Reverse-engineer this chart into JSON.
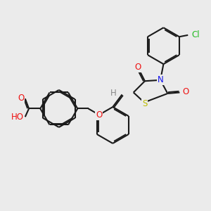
{
  "bg_color": "#ebebeb",
  "bond_color": "#1a1a1a",
  "bond_width": 1.5,
  "dbo": 0.06,
  "atom_colors": {
    "O": "#ee1111",
    "N": "#1111ee",
    "S": "#bbbb00",
    "Cl": "#22bb22",
    "H": "#888888",
    "C": "#1a1a1a"
  },
  "fs": 8.5
}
